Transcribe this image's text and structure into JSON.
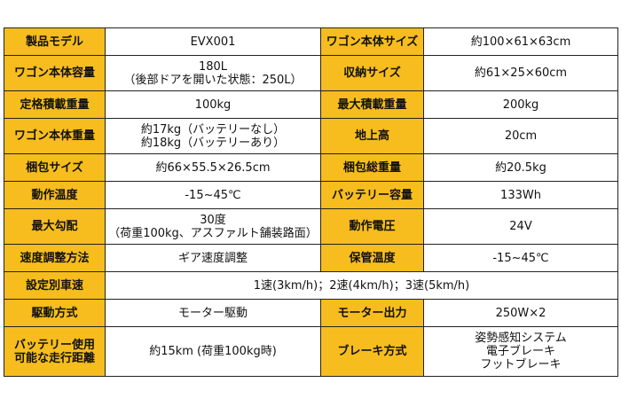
{
  "rows": [
    {
      "l1": "製品モデル",
      "v1": [
        "EVX001"
      ],
      "l2": "ワゴン本体サイズ",
      "v2": [
        "約100×61×63cm"
      ]
    },
    {
      "l1": "ワゴン本体容量",
      "v1": [
        "180L",
        "（後部ドアを開いた状態：250L）"
      ],
      "l2": "収納サイズ",
      "v2": [
        "約61×25×60cm"
      ]
    },
    {
      "l1": "定格積載重量",
      "v1": [
        "100kg"
      ],
      "l2": "最大積載重量",
      "v2": [
        "200kg"
      ]
    },
    {
      "l1": "ワゴン本体重量",
      "v1": [
        "約17kg（バッテリーなし）",
        "約18kg（バッテリーあり）"
      ],
      "l2": "地上高",
      "v2": [
        "20cm"
      ]
    },
    {
      "l1": "梱包サイズ",
      "v1": [
        "約66×55.5×26.5cm"
      ],
      "l2": "梱包総重量",
      "v2": [
        "約20.5kg"
      ]
    },
    {
      "l1": "動作温度",
      "v1": [
        "-15~45℃"
      ],
      "l2": "バッテリー容量",
      "v2": [
        "133Wh"
      ]
    },
    {
      "l1": "最大勾配",
      "v1": [
        "30度",
        "（荷重100kg、アスファルト舗装路面）"
      ],
      "l2": "動作電圧",
      "v2": [
        "24V"
      ]
    },
    {
      "l1": "速度調整方法",
      "v1": [
        "ギア速度調整"
      ],
      "l2": "保管温度",
      "v2": [
        "-15~45℃"
      ]
    },
    {
      "l1": "設定別車速",
      "v_span": "1速(3km/h)；2速(4km/h)；3速(5km/h)"
    },
    {
      "l1": "駆動方式",
      "v1": [
        "モーター駆動"
      ],
      "l2": "モーター出力",
      "v2": [
        "250W×2"
      ]
    },
    {
      "l1_lines": [
        "バッテリー使用",
        "可能な走行距離"
      ],
      "v1": [
        "約15km (荷重100kg時)"
      ],
      "l2": "ブレーキ方式",
      "v2": [
        "姿勢感知システム",
        "電子ブレーキ",
        "フットブレーキ"
      ]
    }
  ]
}
